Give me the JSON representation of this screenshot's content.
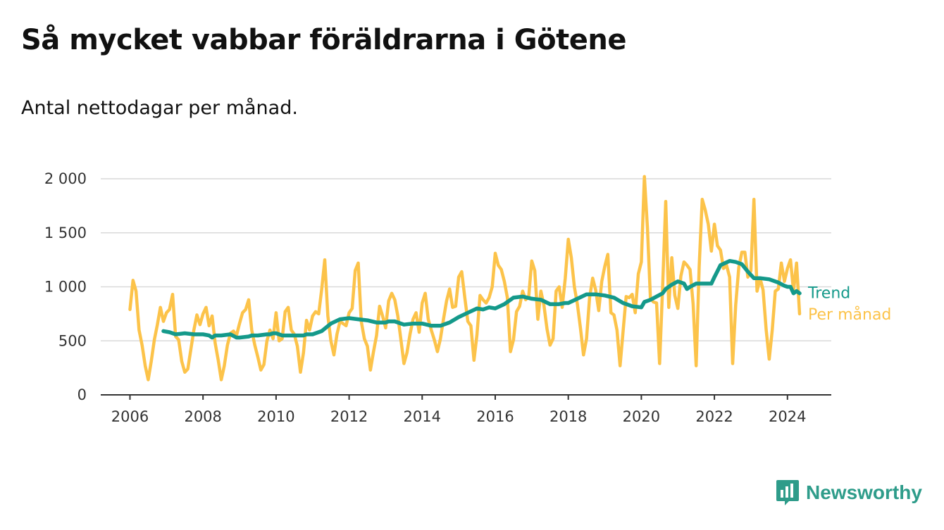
{
  "title": "Så mycket vabbar föräldrarna i Götene",
  "subtitle": "Antal nettodagar per månad.",
  "brand": {
    "name": "Newsworthy",
    "icon": "newsworthy-logo-icon"
  },
  "colors": {
    "trend": "#14998a",
    "monthly": "#fcc34a",
    "grid": "#d9d9d9",
    "axis": "#333333",
    "brand": "#2e9c8a"
  },
  "chart_data": {
    "type": "line",
    "xlim": [
      2005.2,
      2025.2
    ],
    "ylim": [
      0,
      2000
    ],
    "grid": true,
    "x_ticks": [
      2006,
      2008,
      2010,
      2012,
      2014,
      2016,
      2018,
      2020,
      2022,
      2024
    ],
    "x_tick_labels": [
      "2006",
      "2008",
      "2010",
      "2012",
      "2014",
      "2016",
      "2018",
      "2020",
      "2022",
      "2024"
    ],
    "y_ticks": [
      0,
      500,
      1000,
      1500,
      2000
    ],
    "y_tick_labels": [
      "0",
      "500",
      "1 000",
      "1 500",
      "2 000"
    ],
    "series": [
      {
        "name": "Per månad",
        "color": "#fcc34a",
        "x": [
          2006.0,
          2006.083,
          2006.167,
          2006.25,
          2006.333,
          2006.417,
          2006.5,
          2006.583,
          2006.667,
          2006.75,
          2006.833,
          2006.917,
          2007.0,
          2007.083,
          2007.167,
          2007.25,
          2007.333,
          2007.417,
          2007.5,
          2007.583,
          2007.667,
          2007.75,
          2007.833,
          2007.917,
          2008.0,
          2008.083,
          2008.167,
          2008.25,
          2008.333,
          2008.417,
          2008.5,
          2008.583,
          2008.667,
          2008.75,
          2008.833,
          2008.917,
          2009.0,
          2009.083,
          2009.167,
          2009.25,
          2009.333,
          2009.417,
          2009.5,
          2009.583,
          2009.667,
          2009.75,
          2009.833,
          2009.917,
          2010.0,
          2010.083,
          2010.167,
          2010.25,
          2010.333,
          2010.417,
          2010.5,
          2010.583,
          2010.667,
          2010.75,
          2010.833,
          2010.917,
          2011.0,
          2011.083,
          2011.167,
          2011.25,
          2011.333,
          2011.417,
          2011.5,
          2011.583,
          2011.667,
          2011.75,
          2011.833,
          2011.917,
          2012.0,
          2012.083,
          2012.167,
          2012.25,
          2012.333,
          2012.417,
          2012.5,
          2012.583,
          2012.667,
          2012.75,
          2012.833,
          2012.917,
          2013.0,
          2013.083,
          2013.167,
          2013.25,
          2013.333,
          2013.417,
          2013.5,
          2013.583,
          2013.667,
          2013.75,
          2013.833,
          2013.917,
          2014.0,
          2014.083,
          2014.167,
          2014.25,
          2014.333,
          2014.417,
          2014.5,
          2014.583,
          2014.667,
          2014.75,
          2014.833,
          2014.917,
          2015.0,
          2015.083,
          2015.167,
          2015.25,
          2015.333,
          2015.417,
          2015.5,
          2015.583,
          2015.667,
          2015.75,
          2015.833,
          2015.917,
          2016.0,
          2016.083,
          2016.167,
          2016.25,
          2016.333,
          2016.417,
          2016.5,
          2016.583,
          2016.667,
          2016.75,
          2016.833,
          2016.917,
          2017.0,
          2017.083,
          2017.167,
          2017.25,
          2017.333,
          2017.417,
          2017.5,
          2017.583,
          2017.667,
          2017.75,
          2017.833,
          2017.917,
          2018.0,
          2018.083,
          2018.167,
          2018.25,
          2018.333,
          2018.417,
          2018.5,
          2018.583,
          2018.667,
          2018.75,
          2018.833,
          2018.917,
          2019.0,
          2019.083,
          2019.167,
          2019.25,
          2019.333,
          2019.417,
          2019.5,
          2019.583,
          2019.667,
          2019.75,
          2019.833,
          2019.917,
          2020.0,
          2020.083,
          2020.167,
          2020.25,
          2020.333,
          2020.417,
          2020.5,
          2020.583,
          2020.667,
          2020.75,
          2020.833,
          2020.917,
          2021.0,
          2021.083,
          2021.167,
          2021.25,
          2021.333,
          2021.417,
          2021.5,
          2021.583,
          2021.667,
          2021.75,
          2021.833,
          2021.917,
          2022.0,
          2022.083,
          2022.167,
          2022.25,
          2022.333,
          2022.417,
          2022.5,
          2022.583,
          2022.667,
          2022.75,
          2022.833,
          2022.917,
          2023.0,
          2023.083,
          2023.167,
          2023.25,
          2023.333,
          2023.417,
          2023.5,
          2023.583,
          2023.667,
          2023.75,
          2023.833,
          2023.917,
          2024.0,
          2024.083,
          2024.167,
          2024.25,
          2024.333
        ],
        "values": [
          790,
          1060,
          960,
          600,
          460,
          270,
          140,
          310,
          510,
          650,
          810,
          680,
          760,
          790,
          930,
          540,
          510,
          310,
          210,
          240,
          420,
          600,
          740,
          650,
          750,
          810,
          640,
          730,
          480,
          320,
          140,
          270,
          460,
          570,
          590,
          550,
          660,
          760,
          790,
          880,
          600,
          460,
          350,
          230,
          280,
          500,
          600,
          520,
          760,
          500,
          520,
          770,
          810,
          600,
          560,
          450,
          210,
          390,
          690,
          600,
          730,
          770,
          750,
          980,
          1250,
          730,
          500,
          370,
          560,
          680,
          660,
          640,
          760,
          800,
          1150,
          1220,
          680,
          520,
          450,
          230,
          400,
          550,
          820,
          730,
          620,
          870,
          940,
          880,
          730,
          510,
          290,
          390,
          560,
          700,
          760,
          580,
          850,
          940,
          700,
          600,
          510,
          400,
          520,
          700,
          870,
          980,
          810,
          820,
          1090,
          1140,
          900,
          680,
          640,
          320,
          560,
          920,
          880,
          850,
          900,
          1000,
          1310,
          1200,
          1160,
          1050,
          900,
          400,
          510,
          770,
          820,
          960,
          880,
          910,
          1240,
          1150,
          700,
          960,
          830,
          610,
          460,
          520,
          960,
          1000,
          810,
          1080,
          1440,
          1270,
          1000,
          840,
          620,
          370,
          520,
          900,
          1080,
          970,
          780,
          1050,
          1190,
          1300,
          760,
          740,
          600,
          270,
          590,
          910,
          900,
          930,
          760,
          1120,
          1230,
          2020,
          1550,
          890,
          860,
          850,
          290,
          1000,
          1790,
          810,
          1270,
          920,
          800,
          1100,
          1230,
          1200,
          1160,
          840,
          270,
          1190,
          1810,
          1710,
          1580,
          1330,
          1580,
          1380,
          1340,
          1170,
          1200,
          1090,
          290,
          830,
          1180,
          1320,
          1320,
          1090,
          1150,
          1810,
          960,
          1080,
          970,
          600,
          330,
          600,
          960,
          980,
          1220,
          1050,
          1170,
          1250,
          960,
          1220,
          750
        ]
      },
      {
        "name": "Trend",
        "color": "#14998a",
        "x": [
          2006.917,
          2007.083,
          2007.25,
          2007.5,
          2007.75,
          2008.0,
          2008.167,
          2008.25,
          2008.333,
          2008.5,
          2008.75,
          2008.917,
          2009.0,
          2009.25,
          2009.333,
          2009.5,
          2009.75,
          2009.833,
          2009.917,
          2010.0,
          2010.167,
          2010.5,
          2010.75,
          2010.833,
          2010.917,
          2011.0,
          2011.25,
          2011.5,
          2011.75,
          2012.0,
          2012.25,
          2012.5,
          2012.75,
          2012.917,
          2013.0,
          2013.083,
          2013.167,
          2013.25,
          2013.5,
          2013.75,
          2013.917,
          2014.0,
          2014.25,
          2014.5,
          2014.75,
          2015.0,
          2015.25,
          2015.5,
          2015.667,
          2015.833,
          2016.0,
          2016.25,
          2016.5,
          2016.75,
          2017.0,
          2017.25,
          2017.5,
          2017.75,
          2017.917,
          2018.0,
          2018.25,
          2018.5,
          2018.75,
          2019.0,
          2019.25,
          2019.5,
          2019.75,
          2020.0,
          2020.083,
          2020.25,
          2020.417,
          2020.583,
          2020.667,
          2020.833,
          2021.0,
          2021.167,
          2021.25,
          2021.333,
          2021.5,
          2021.75,
          2021.917,
          2022.0,
          2022.167,
          2022.417,
          2022.583,
          2022.75,
          2022.917,
          2023.0,
          2023.083,
          2023.25,
          2023.5,
          2023.75,
          2023.917,
          2024.0,
          2024.083,
          2024.167,
          2024.25,
          2024.333
        ],
        "values": [
          590,
          580,
          560,
          570,
          560,
          560,
          550,
          530,
          550,
          550,
          560,
          530,
          530,
          540,
          550,
          550,
          560,
          560,
          570,
          570,
          550,
          550,
          550,
          560,
          560,
          560,
          590,
          660,
          700,
          710,
          700,
          690,
          670,
          670,
          670,
          680,
          680,
          680,
          650,
          660,
          660,
          660,
          640,
          640,
          670,
          720,
          760,
          800,
          790,
          810,
          800,
          840,
          900,
          910,
          890,
          880,
          840,
          840,
          850,
          850,
          890,
          930,
          930,
          920,
          900,
          850,
          820,
          810,
          860,
          880,
          910,
          940,
          980,
          1020,
          1050,
          1030,
          980,
          1000,
          1030,
          1030,
          1030,
          1090,
          1200,
          1240,
          1230,
          1210,
          1140,
          1110,
          1080,
          1080,
          1070,
          1040,
          1010,
          1000,
          1000,
          940,
          960,
          940
        ]
      }
    ],
    "series_labels": [
      "Trend",
      "Per månad"
    ]
  }
}
